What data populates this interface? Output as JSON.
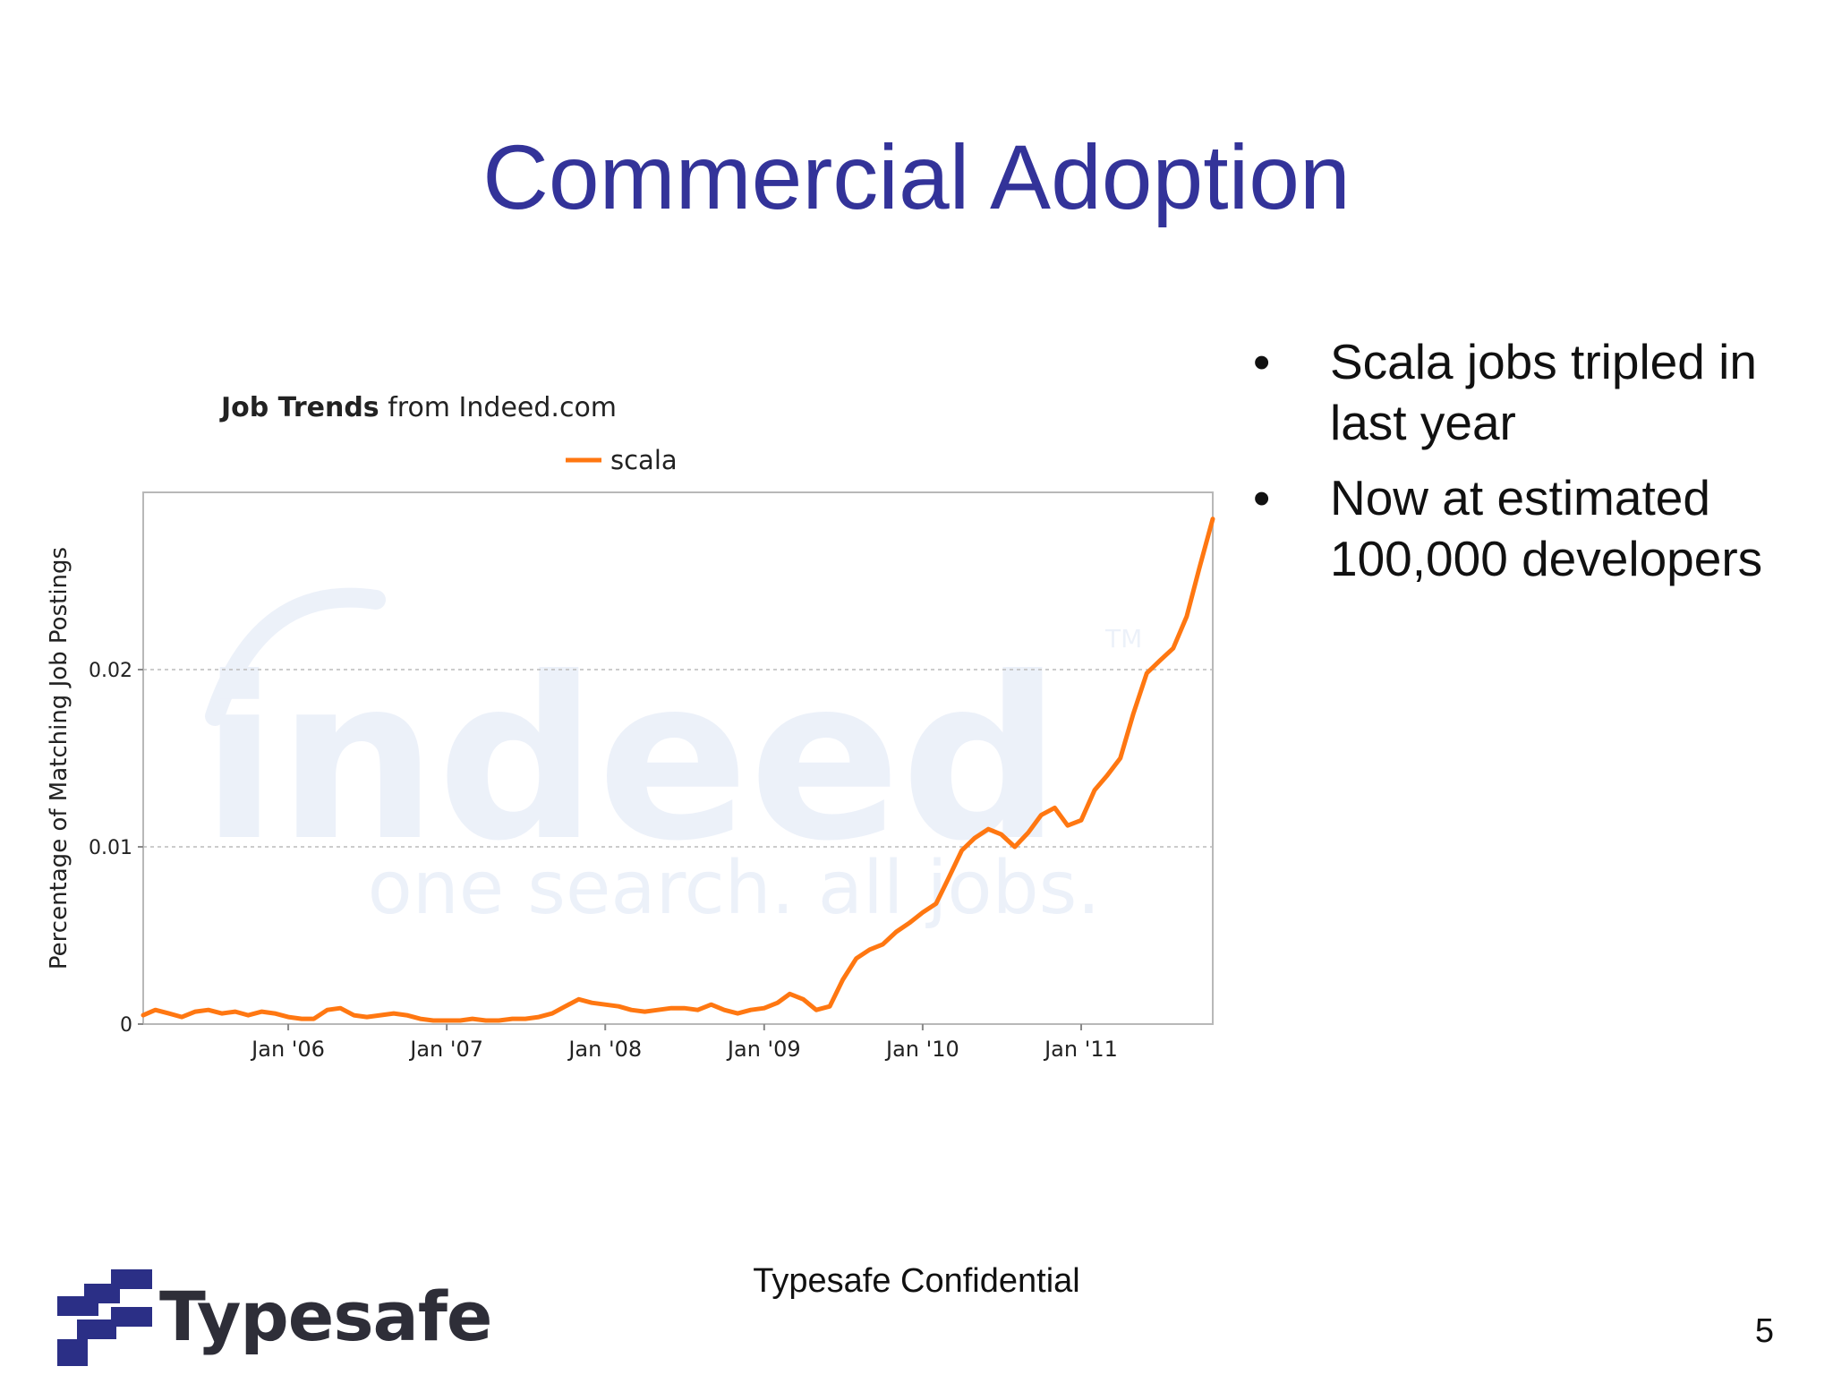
{
  "slide": {
    "title": "Commercial Adoption",
    "bullets": [
      "Scala jobs tripled in last year",
      "Now at estimated 100,000 developers"
    ],
    "footer": "Typesafe Confidential",
    "page_number": "5",
    "logo_text": "Typesafe",
    "accent_color": "#333399",
    "bullet_glyph": "•"
  },
  "chart_data": {
    "type": "line",
    "title_bold": "Job Trends",
    "title_rest": " from Indeed.com",
    "watermark_main": "indeed",
    "watermark_tagline": "one search. all jobs.",
    "watermark_tm": "TM",
    "ylabel": "Percentage of Matching Job Postings",
    "xlabel": "",
    "ylim": [
      0,
      0.03
    ],
    "xlim": [
      "2005-02-01",
      "2011-10-31"
    ],
    "grid": true,
    "yticks": [
      {
        "value": 0,
        "label": "0"
      },
      {
        "value": 0.01,
        "label": "0.01"
      },
      {
        "value": 0.02,
        "label": "0.02"
      }
    ],
    "xticks": [
      {
        "value": "2006-01-01",
        "label": "Jan '06"
      },
      {
        "value": "2007-01-01",
        "label": "Jan '07"
      },
      {
        "value": "2008-01-01",
        "label": "Jan '08"
      },
      {
        "value": "2009-01-01",
        "label": "Jan '09"
      },
      {
        "value": "2010-01-01",
        "label": "Jan '10"
      },
      {
        "value": "2011-01-01",
        "label": "Jan '11"
      }
    ],
    "series": [
      {
        "name": "scala",
        "color": "#ff7711",
        "x": [
          "2005-02-01",
          "2005-03-01",
          "2005-04-01",
          "2005-05-01",
          "2005-06-01",
          "2005-07-01",
          "2005-08-01",
          "2005-09-01",
          "2005-10-01",
          "2005-11-01",
          "2005-12-01",
          "2006-01-01",
          "2006-02-01",
          "2006-03-01",
          "2006-04-01",
          "2006-05-01",
          "2006-06-01",
          "2006-07-01",
          "2006-08-01",
          "2006-09-01",
          "2006-10-01",
          "2006-11-01",
          "2006-12-01",
          "2007-01-01",
          "2007-02-01",
          "2007-03-01",
          "2007-04-01",
          "2007-05-01",
          "2007-06-01",
          "2007-07-01",
          "2007-08-01",
          "2007-09-01",
          "2007-10-01",
          "2007-11-01",
          "2007-12-01",
          "2008-01-01",
          "2008-02-01",
          "2008-03-01",
          "2008-04-01",
          "2008-05-01",
          "2008-06-01",
          "2008-07-01",
          "2008-08-01",
          "2008-09-01",
          "2008-10-01",
          "2008-11-01",
          "2008-12-01",
          "2009-01-01",
          "2009-02-01",
          "2009-03-01",
          "2009-04-01",
          "2009-05-01",
          "2009-06-01",
          "2009-07-01",
          "2009-08-01",
          "2009-09-01",
          "2009-10-01",
          "2009-11-01",
          "2009-12-01",
          "2010-01-01",
          "2010-02-01",
          "2010-03-01",
          "2010-04-01",
          "2010-05-01",
          "2010-06-01",
          "2010-07-01",
          "2010-08-01",
          "2010-09-01",
          "2010-10-01",
          "2010-11-01",
          "2010-12-01",
          "2011-01-01",
          "2011-02-01",
          "2011-03-01",
          "2011-04-01",
          "2011-05-01",
          "2011-06-01",
          "2011-07-01",
          "2011-08-01",
          "2011-09-01",
          "2011-10-01",
          "2011-10-31"
        ],
        "values": [
          0.0005,
          0.0008,
          0.0006,
          0.0004,
          0.0007,
          0.0008,
          0.0006,
          0.0007,
          0.0005,
          0.0007,
          0.0006,
          0.0004,
          0.0003,
          0.0003,
          0.0008,
          0.0009,
          0.0005,
          0.0004,
          0.0005,
          0.0006,
          0.0005,
          0.0003,
          0.0002,
          0.0002,
          0.0002,
          0.0003,
          0.0002,
          0.0002,
          0.0003,
          0.0003,
          0.0004,
          0.0006,
          0.001,
          0.0014,
          0.0012,
          0.0011,
          0.001,
          0.0008,
          0.0007,
          0.0008,
          0.0009,
          0.0009,
          0.0008,
          0.0011,
          0.0008,
          0.0006,
          0.0008,
          0.0009,
          0.0012,
          0.0017,
          0.0014,
          0.0008,
          0.001,
          0.0025,
          0.0037,
          0.0042,
          0.0045,
          0.0052,
          0.0057,
          0.0063,
          0.0068,
          0.0082,
          0.0098,
          0.0105,
          0.011,
          0.0107,
          0.01,
          0.0108,
          0.0118,
          0.0122,
          0.0112,
          0.0115,
          0.0132,
          0.014,
          0.015,
          0.0175,
          0.0198,
          0.0205,
          0.0212,
          0.023,
          0.0258,
          0.0285
        ]
      }
    ]
  }
}
